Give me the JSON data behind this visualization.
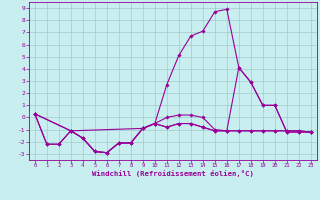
{
  "xlabel": "Windchill (Refroidissement éolien,°C)",
  "xlim": [
    -0.5,
    23.5
  ],
  "ylim": [
    -3.5,
    9.5
  ],
  "xticks": [
    0,
    1,
    2,
    3,
    4,
    5,
    6,
    7,
    8,
    9,
    10,
    11,
    12,
    13,
    14,
    15,
    16,
    17,
    18,
    19,
    20,
    21,
    22,
    23
  ],
  "yticks": [
    -3,
    -2,
    -1,
    0,
    1,
    2,
    3,
    4,
    5,
    6,
    7,
    8,
    9
  ],
  "bg_color": "#c8eef0",
  "line_color": "#990099",
  "grid_color": "#a0cccc",
  "line1_x": [
    0,
    1,
    2,
    3,
    4,
    5,
    6,
    7,
    8,
    9,
    10,
    11,
    12,
    13,
    14,
    15,
    16,
    17,
    18,
    19,
    20,
    21,
    22,
    23
  ],
  "line1_y": [
    0.3,
    -2.2,
    -2.2,
    -1.1,
    -1.7,
    -2.8,
    -2.9,
    -2.1,
    -2.1,
    -0.9,
    -0.5,
    2.7,
    5.1,
    6.7,
    7.1,
    8.7,
    8.9,
    4.1,
    2.9,
    1.0,
    1.0,
    -1.2,
    -1.2,
    -1.2
  ],
  "line2_x": [
    0,
    3,
    9,
    10,
    11,
    12,
    13,
    14,
    15,
    16,
    17,
    18,
    19,
    20,
    21,
    22,
    23
  ],
  "line2_y": [
    0.3,
    -1.1,
    -0.9,
    -0.5,
    -0.8,
    -0.5,
    -0.5,
    -0.8,
    -1.1,
    -1.1,
    4.1,
    2.9,
    1.0,
    1.0,
    -1.2,
    -1.2,
    -1.2
  ],
  "line3_x": [
    0,
    3,
    4,
    5,
    6,
    7,
    8,
    9,
    10,
    11,
    12,
    13,
    14,
    15,
    16,
    17,
    18,
    19,
    20,
    21,
    22,
    23
  ],
  "line3_y": [
    0.3,
    -1.1,
    -1.7,
    -2.8,
    -2.9,
    -2.1,
    -2.1,
    -0.9,
    -0.5,
    0.0,
    0.2,
    0.2,
    0.0,
    -1.0,
    -1.1,
    -1.1,
    -1.1,
    -1.1,
    -1.1,
    -1.1,
    -1.1,
    -1.2
  ],
  "line4_x": [
    0,
    1,
    2,
    3,
    4,
    5,
    6,
    7,
    8,
    9,
    10,
    11,
    12,
    13,
    14,
    15,
    16,
    17,
    18,
    19,
    20,
    21,
    22,
    23
  ],
  "line4_y": [
    0.3,
    -2.2,
    -2.2,
    -1.1,
    -1.7,
    -2.8,
    -2.9,
    -2.1,
    -2.1,
    -0.9,
    -0.5,
    -0.8,
    -0.5,
    -0.5,
    -0.8,
    -1.1,
    -1.1,
    -1.1,
    -1.1,
    -1.1,
    -1.1,
    -1.1,
    -1.1,
    -1.2
  ]
}
